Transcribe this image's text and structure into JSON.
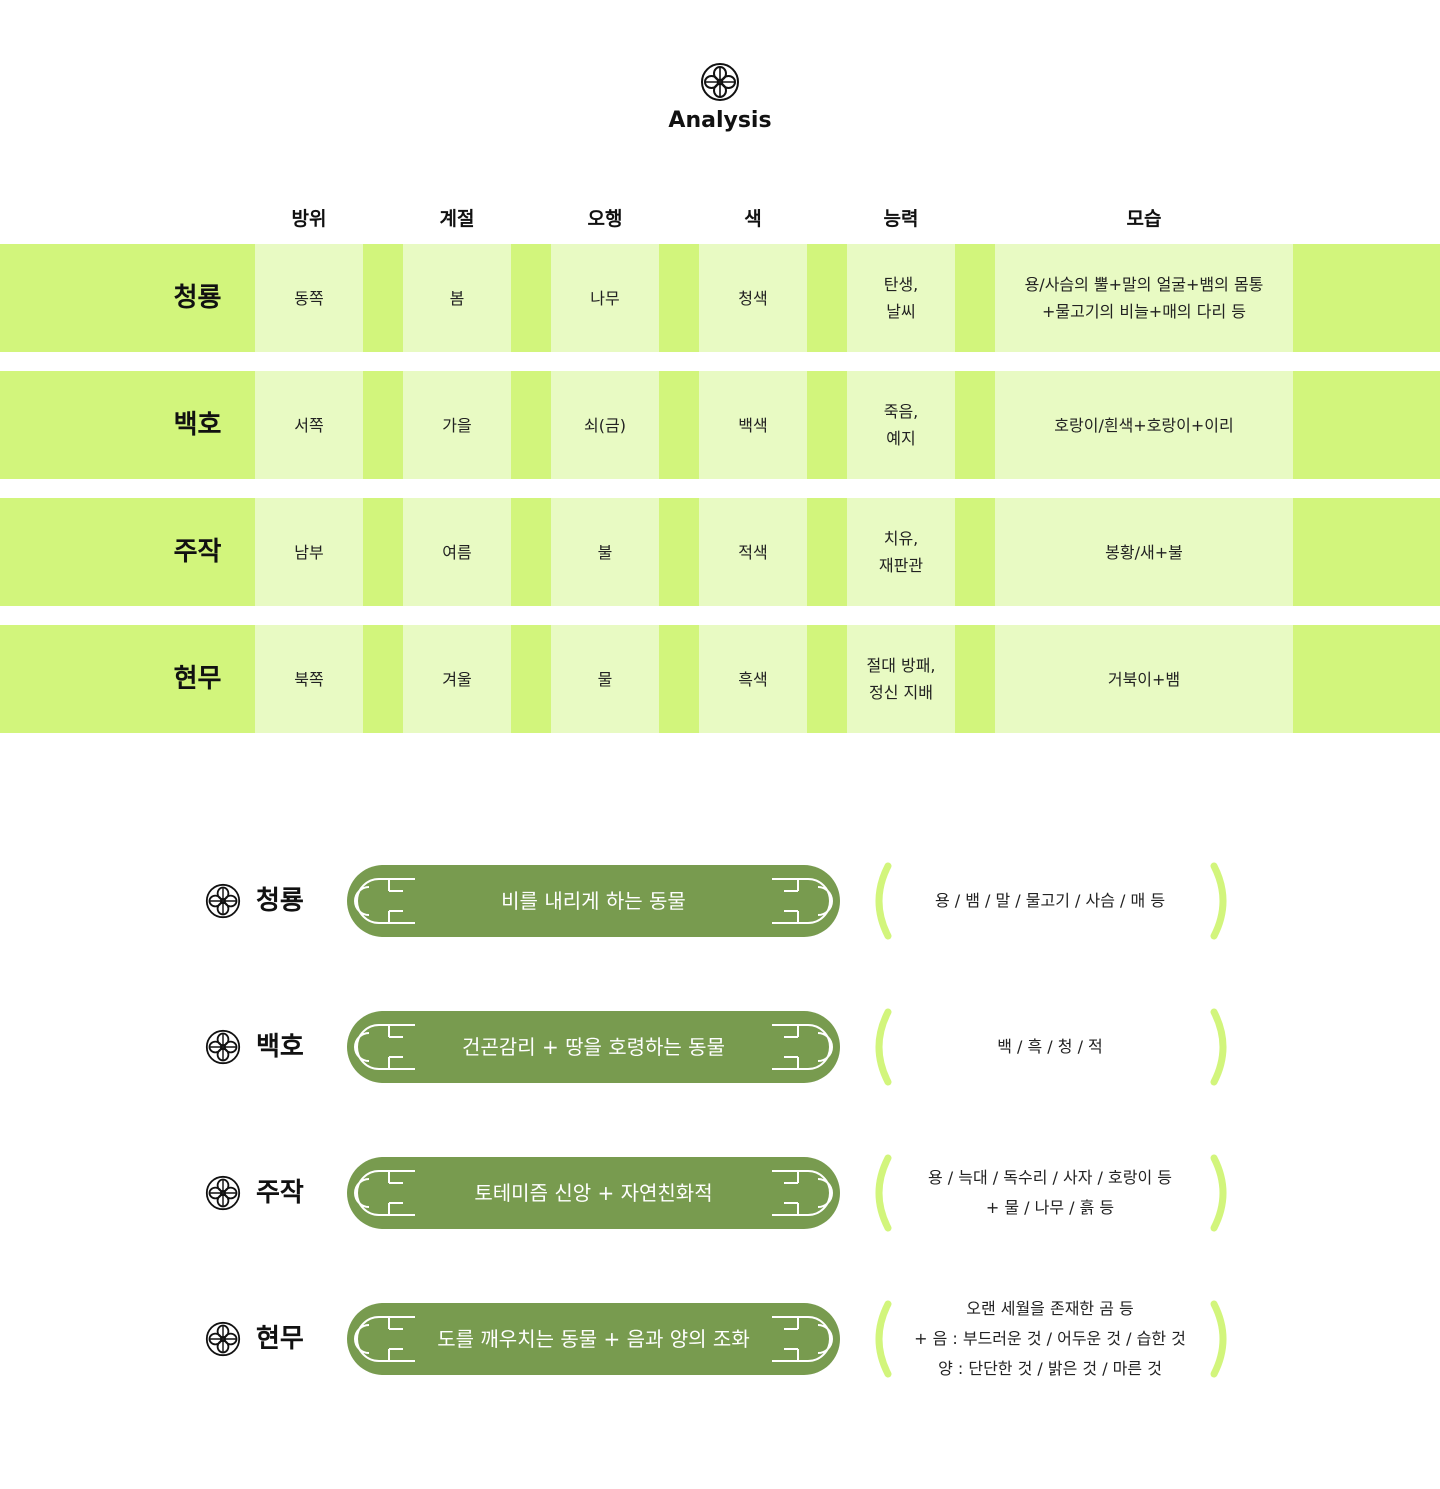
{
  "header": {
    "title": "Analysis",
    "icon": "clover-knot-icon"
  },
  "colors": {
    "row_bg": "#d2f57c",
    "cell_bg": "#e8fac3",
    "pill_bg": "#789b4f",
    "bracket": "#d2f57c"
  },
  "table": {
    "columns": [
      "방위",
      "계절",
      "오행",
      "색",
      "능력",
      "모습"
    ],
    "rows": [
      {
        "name": "청룡",
        "cells": [
          "동쪽",
          "봄",
          "나무",
          "청색",
          "탄생,\n날씨",
          "용/사슴의 뿔+말의 얼굴+뱀의 몸통\n+물고기의 비늘+매의 다리 등"
        ]
      },
      {
        "name": "백호",
        "cells": [
          "서쪽",
          "가을",
          "쇠(금)",
          "백색",
          "죽음,\n예지",
          "호랑이/흰색+호랑이+이리"
        ]
      },
      {
        "name": "주작",
        "cells": [
          "남부",
          "여름",
          "불",
          "적색",
          "치유,\n재판관",
          "봉황/새+불"
        ]
      },
      {
        "name": "현무",
        "cells": [
          "북쪽",
          "겨울",
          "물",
          "흑색",
          "절대 방패,\n정신 지배",
          "거북이+뱀"
        ]
      }
    ]
  },
  "summary": [
    {
      "name": "청룡",
      "pill": "비를 내리게 하는 동물",
      "desc": "용 / 뱀 / 말 / 물고기 / 사슴 / 매 등"
    },
    {
      "name": "백호",
      "pill": "건곤감리 + 땅을 호령하는 동물",
      "desc": "백 / 흑 / 청 / 적"
    },
    {
      "name": "주작",
      "pill": "토테미즘 신앙 + 자연친화적",
      "desc": "용 / 늑대 / 독수리 / 사자 / 호랑이 등\n+ 물 / 나무 / 흙 등"
    },
    {
      "name": "현무",
      "pill": "도를 깨우치는 동물 + 음과 양의 조화",
      "desc": "오랜 세월을 존재한 곰 등\n+ 음 : 부드러운 것 / 어두운 것 / 습한 것\n양 : 단단한 것 / 밝은 것 / 마른 것"
    }
  ]
}
